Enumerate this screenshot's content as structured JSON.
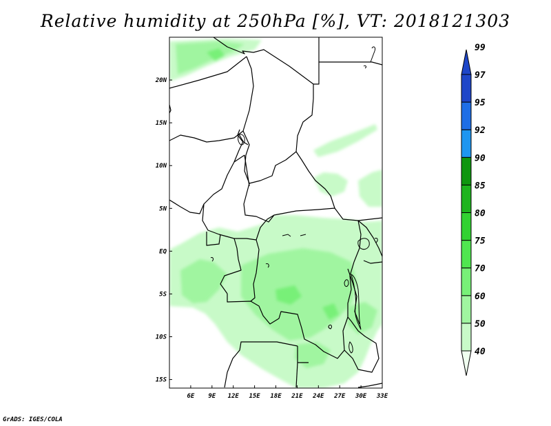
{
  "title": "Relative humidity at 250hPa [%], VT: 2018121303",
  "credit": "GrADS: IGES/COLA",
  "map": {
    "lon_range": [
      3,
      33
    ],
    "lat_range": [
      -16,
      25
    ],
    "x_ticks": [
      {
        "value": 6,
        "label": "6E"
      },
      {
        "value": 9,
        "label": "9E"
      },
      {
        "value": 12,
        "label": "12E"
      },
      {
        "value": 15,
        "label": "15E"
      },
      {
        "value": 18,
        "label": "18E"
      },
      {
        "value": 21,
        "label": "21E"
      },
      {
        "value": 24,
        "label": "24E"
      },
      {
        "value": 27,
        "label": "27E"
      },
      {
        "value": 30,
        "label": "30E"
      },
      {
        "value": 33,
        "label": "33E"
      }
    ],
    "y_ticks": [
      {
        "value": 20,
        "label": "20N"
      },
      {
        "value": 15,
        "label": "15N"
      },
      {
        "value": 10,
        "label": "10N"
      },
      {
        "value": 5,
        "label": "5N"
      },
      {
        "value": 0,
        "label": "EQ"
      },
      {
        "value": -5,
        "label": "5S"
      },
      {
        "value": -10,
        "label": "10S"
      },
      {
        "value": -15,
        "label": "15S"
      }
    ]
  },
  "colorbar": {
    "levels": [
      "40",
      "50",
      "60",
      "70",
      "75",
      "80",
      "85",
      "90",
      "92",
      "95",
      "97",
      "99"
    ],
    "colors": [
      "#f0fff0",
      "#c8fac8",
      "#a0f5a0",
      "#78f078",
      "#50e650",
      "#32d232",
      "#1eb41e",
      "#0f960f",
      "#1e96f0",
      "#1e6ee6",
      "#1e46c8"
    ]
  },
  "colors": {
    "rh_50_60": "#c8fac8",
    "rh_60_70": "#a0f5a0",
    "rh_70_75": "#78f078",
    "lowest_band": "#f0fff0",
    "border": "#000000"
  }
}
